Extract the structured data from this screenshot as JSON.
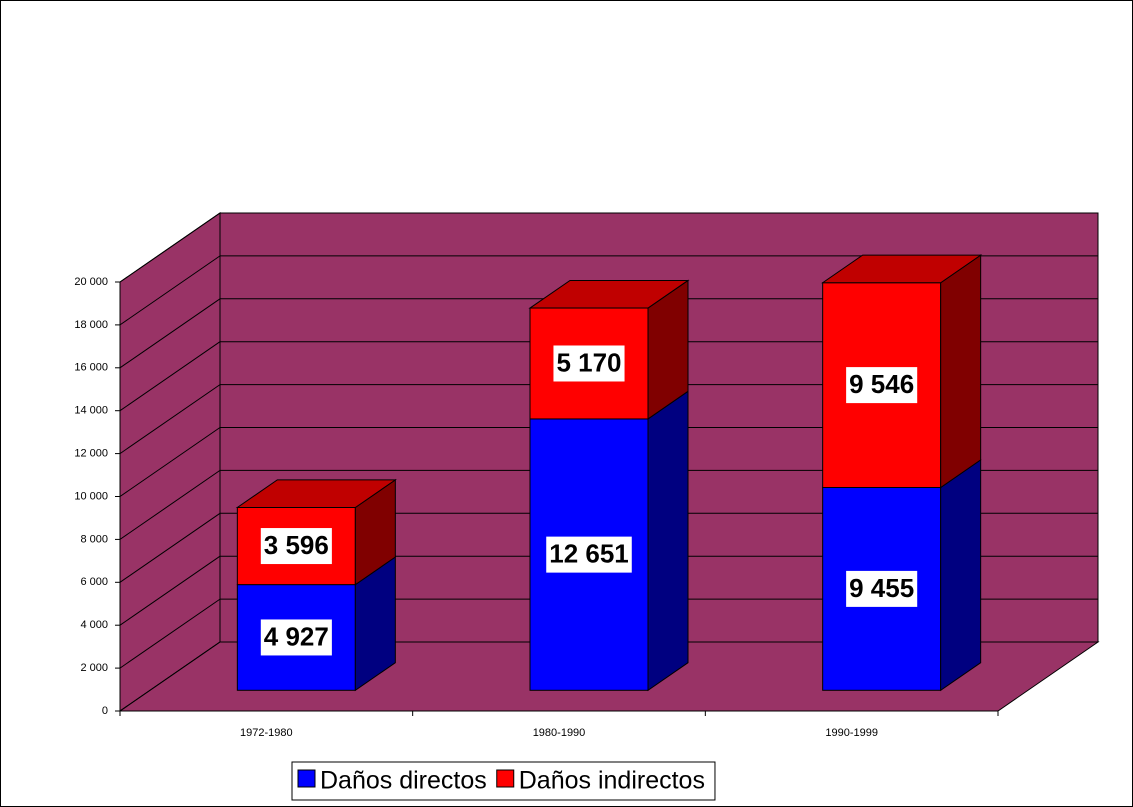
{
  "chart_data": {
    "type": "bar3d_stacked",
    "categories": [
      "1972-1980",
      "1980-1990",
      "1990-1999"
    ],
    "series": [
      {
        "name": "Daños directos",
        "color": "#0000ff",
        "side_color": "#000080",
        "values": [
          4927,
          12651,
          9455
        ],
        "value_labels": [
          "4 927",
          "12 651",
          "9 455"
        ]
      },
      {
        "name": "Daños indirectos",
        "color": "#ff0000",
        "side_color": "#800000",
        "values": [
          3596,
          5170,
          9546
        ],
        "value_labels": [
          "3 596",
          "5 170",
          "9 546"
        ]
      }
    ],
    "ylim": [
      0,
      20000
    ],
    "yticks": [
      0,
      {
        "value": 2000,
        "label": "2 000"
      },
      {
        "value": 4000,
        "label": "4 000"
      },
      {
        "value": 6000,
        "label": "6 000"
      },
      {
        "value": 8000,
        "label": "8 000"
      },
      {
        "value": 10000,
        "label": "10 000"
      },
      {
        "value": 12000,
        "label": "12 000"
      },
      {
        "value": 14000,
        "label": "14 000"
      },
      {
        "value": 16000,
        "label": "16 000"
      },
      {
        "value": 18000,
        "label": "18 000"
      },
      {
        "value": 20000,
        "label": "20 000"
      }
    ],
    "grid": true,
    "wall_color": "#993366",
    "legend": "bottom"
  }
}
